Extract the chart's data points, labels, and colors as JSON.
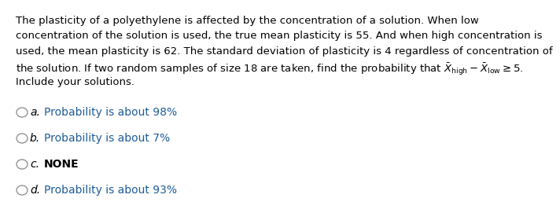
{
  "bg_color": "#ffffff",
  "text_color": "#000000",
  "blue_color": "#1f5c99",
  "font_size_para": 9.5,
  "font_size_options": 10.0,
  "para_lines": [
    "The plasticity of a polyethylene is affected by the concentration of a solution. When low",
    "concentration of the solution is used, the true mean plasticity is 55. And when high concentration is",
    "used, the mean plasticity is 62. The standard deviation of plasticity is 4 regardless of concentration of",
    "the solution. If two random samples of size 18 are taken, find the probability that $\\bar{X}_{\\mathrm{high}} - \\bar{X}_{\\mathrm{low}} \\geq 5$.",
    "Include your solutions."
  ],
  "options": [
    {
      "label": "a.",
      "text": "Probability is about 98%",
      "text_color": "#1f5c99",
      "label_italic": true,
      "label_bold": false,
      "text_bold": false
    },
    {
      "label": "b.",
      "text": "Probability is about 7%",
      "text_color": "#1f5c99",
      "label_italic": true,
      "label_bold": false,
      "text_bold": false
    },
    {
      "label": "c.",
      "text": "NONE",
      "text_color": "#000000",
      "label_italic": true,
      "label_bold": false,
      "text_bold": true
    },
    {
      "label": "d.",
      "text": "Probability is about 93%",
      "text_color": "#1f5c99",
      "label_italic": true,
      "label_bold": false,
      "text_bold": false
    }
  ]
}
